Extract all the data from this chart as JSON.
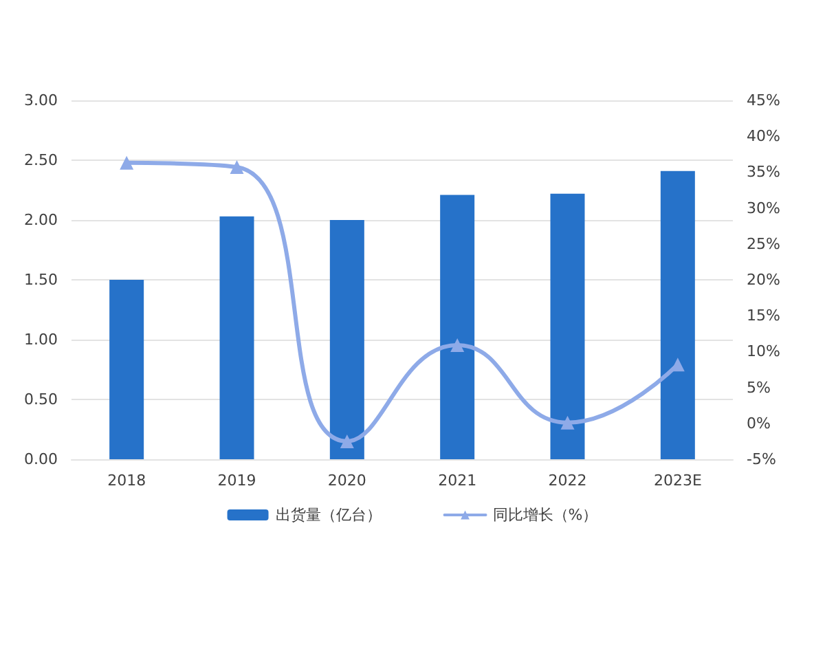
{
  "chart_data": {
    "type": "bar",
    "categories": [
      "2018",
      "2019",
      "2020",
      "2021",
      "2022",
      "2023E"
    ],
    "series": [
      {
        "name": "出货量（亿台）",
        "color": "#2672c9",
        "values": [
          1.5,
          2.03,
          2.0,
          2.21,
          2.22,
          2.41
        ]
      },
      {
        "name": "同比增长（%）",
        "type": "line",
        "axis": "y2",
        "color": "#8eaae8",
        "values": [
          36.3,
          35.7,
          -2.5,
          10.9,
          0.1,
          8.2
        ]
      }
    ],
    "ylim": [
      0,
      3
    ],
    "yticks": [
      {
        "value": 0,
        "label": "0.00"
      },
      {
        "value": 0.5,
        "label": "0.50"
      },
      {
        "value": 1,
        "label": "1.00"
      },
      {
        "value": 1.5,
        "label": "1.50"
      },
      {
        "value": 2,
        "label": "2.00"
      },
      {
        "value": 2.5,
        "label": "2.50"
      },
      {
        "value": 3,
        "label": "3.00"
      }
    ],
    "y2lim": [
      -5,
      45
    ],
    "y2ticks": [
      {
        "value": -5,
        "label": "-5%"
      },
      {
        "value": 0,
        "label": "0%"
      },
      {
        "value": 5,
        "label": "5%"
      },
      {
        "value": 10,
        "label": "10%"
      },
      {
        "value": 15,
        "label": "15%"
      },
      {
        "value": 20,
        "label": "20%"
      },
      {
        "value": 25,
        "label": "25%"
      },
      {
        "value": 30,
        "label": "30%"
      },
      {
        "value": 35,
        "label": "35%"
      },
      {
        "value": 40,
        "label": "40%"
      },
      {
        "value": 45,
        "label": "45%"
      }
    ],
    "grid": "y",
    "legend": "bottom",
    "marker": "triangle",
    "line_style": "solid"
  }
}
